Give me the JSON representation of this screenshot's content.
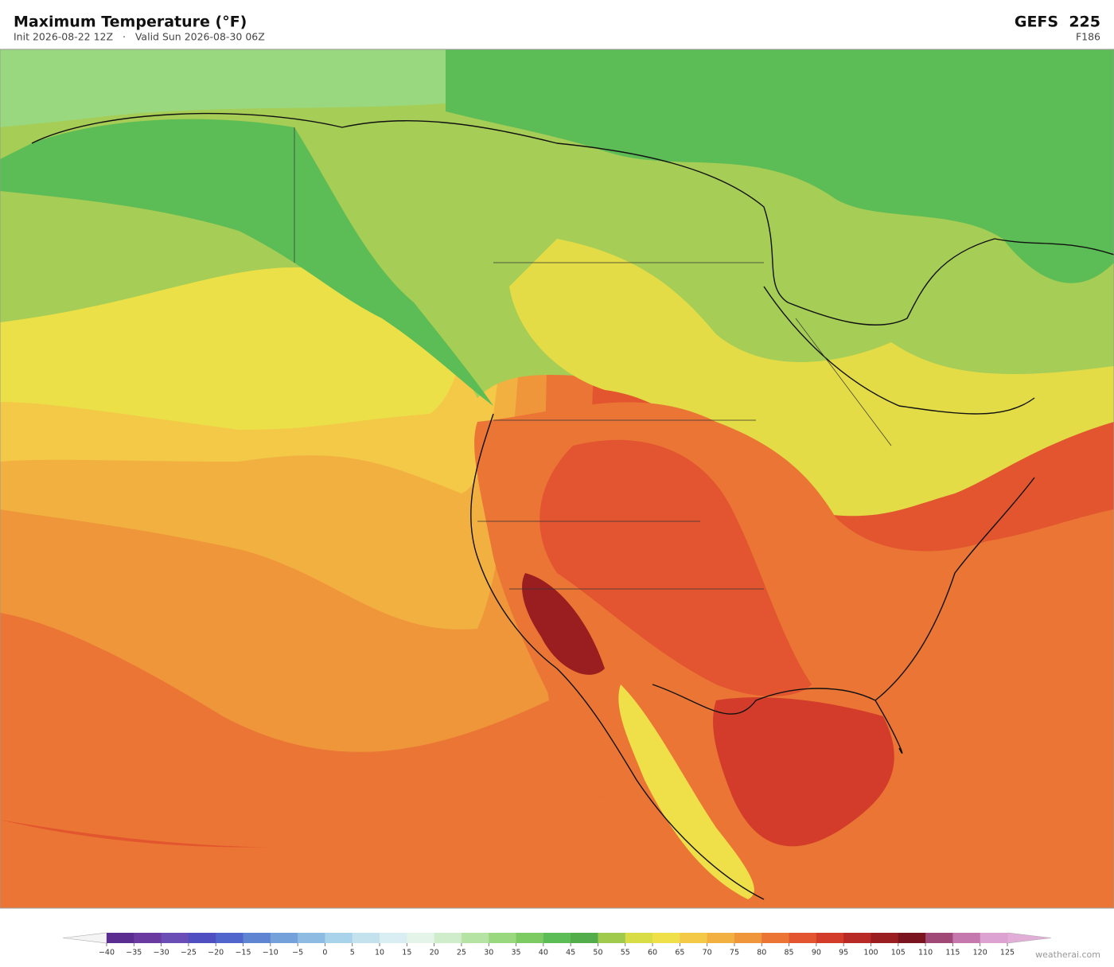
{
  "header": {
    "title": "Maximum Temperature  (°F)",
    "subtitle": "Init 2026-08-22 12Z   ·   Valid Sun 2026-08-30 06Z",
    "model": "GEFS  225",
    "forecast_hour": "F186"
  },
  "colorbar": {
    "ticks": [
      {
        "value": -40,
        "label": "−40"
      },
      {
        "value": -35,
        "label": "−35"
      },
      {
        "value": -30,
        "label": "−30"
      },
      {
        "value": -25,
        "label": "−25"
      },
      {
        "value": -20,
        "label": "−20"
      },
      {
        "value": -15,
        "label": "−15"
      },
      {
        "value": -10,
        "label": "−10"
      },
      {
        "value": -5,
        "label": "−5"
      },
      0,
      5,
      10,
      15,
      20,
      25,
      30,
      35,
      40,
      45,
      50,
      55,
      60,
      65,
      70,
      75,
      80,
      85,
      90,
      95,
      100,
      105,
      110,
      115,
      120,
      125
    ],
    "colors": [
      "#5b2d91",
      "#6a3aa0",
      "#6a4db5",
      "#4f4fc2",
      "#5066cc",
      "#5f85d2",
      "#75a1da",
      "#8ebbe1",
      "#a9d3ea",
      "#c3e2ee",
      "#d9eef2",
      "#e5f4e8",
      "#cfeccb",
      "#b5e3a3",
      "#9ad87f",
      "#7ccb62",
      "#5cbc55",
      "#52ad4a",
      "#9fca4c",
      "#d8dc45",
      "#efe04a",
      "#f3c947",
      "#f2b040",
      "#ef953a",
      "#ea7535",
      "#e25530",
      "#d33c2a",
      "#b82a25",
      "#9a1e20",
      "#7a1520",
      "#a04876",
      "#c478ae",
      "#dca2d2"
    ],
    "under_color": "#f4f4f4",
    "over_color": "#e2aed8"
  },
  "footer": {
    "watermark": "weatherai.com"
  }
}
